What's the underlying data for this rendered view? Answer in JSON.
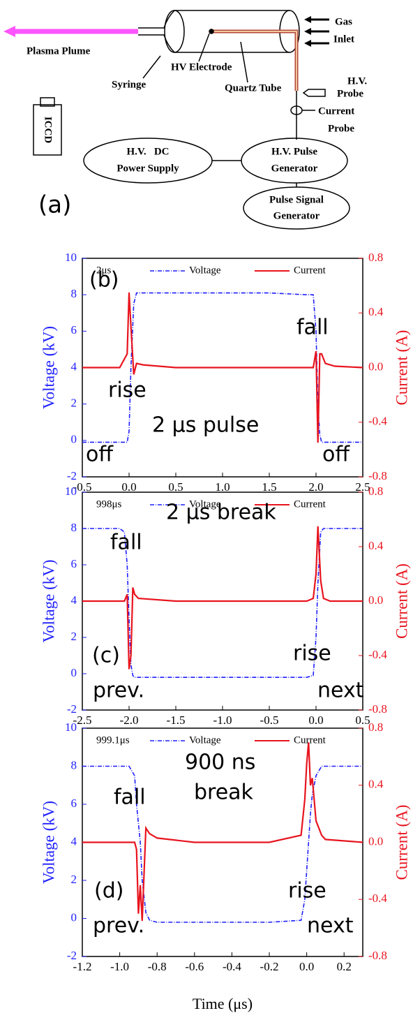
{
  "diagram": {
    "panel_label": "(a)",
    "plasma_plume": "Plasma Plume",
    "syringe": "Syringe",
    "hv_electrode": "HV Electrode",
    "quartz_tube": "Quartz Tube",
    "gas_inlet": [
      "Gas",
      "Inlet"
    ],
    "hv_probe": [
      "H.V.",
      "Probe"
    ],
    "current_probe": [
      "Current",
      "Probe"
    ],
    "iccd": "ICCD",
    "hv_dc_power_supply": [
      "H.V.   DC",
      "Power Supply"
    ],
    "hv_pulse_generator": [
      "H.V. Pulse",
      "Generator"
    ],
    "pulse_signal_generator": [
      "Pulse Signal",
      "Generator"
    ]
  },
  "chart_data": [
    {
      "type": "line",
      "panel_label": "(b)",
      "legend_title": "2μs",
      "y_label": "Voltage (kV)",
      "y2_label": "Current (A)",
      "annotations": [
        "rise",
        "fall",
        "2 μs pulse",
        "off",
        "off"
      ],
      "x": [
        -0.5,
        -0.1,
        -0.02,
        0,
        0.02,
        0.05,
        0.08,
        0.15,
        0.5,
        1.0,
        1.5,
        1.9,
        1.97,
        2.0,
        2.02,
        2.04,
        2.06,
        2.1,
        2.2,
        2.5
      ],
      "series": [
        {
          "name": "Voltage",
          "color": "#1f1fff",
          "values": [
            -0.1,
            -0.1,
            -0.1,
            0.5,
            4,
            7.5,
            8.1,
            8.1,
            8.1,
            8.1,
            8.1,
            8.0,
            8.0,
            6,
            2,
            0.3,
            -0.1,
            -0.1,
            -0.1,
            -0.1
          ]
        },
        {
          "name": "Current",
          "color": "#e8141e",
          "axis": "y2",
          "values": [
            0,
            0,
            0.1,
            0.55,
            0.3,
            -0.05,
            0.03,
            0.02,
            0,
            0,
            0,
            0,
            0,
            0.12,
            -0.55,
            0.1,
            0.1,
            0.03,
            0.01,
            0
          ]
        }
      ],
      "xlim": [
        -0.5,
        2.5
      ],
      "xticks": [
        -0.5,
        {
          "value": 0,
          "label": "0.0"
        },
        0.5,
        {
          "value": 1,
          "label": "1.0"
        },
        1.5,
        {
          "value": 2,
          "label": "2.0"
        },
        2.5
      ],
      "ylim": [
        -2,
        10
      ],
      "yticks": [
        -2,
        0,
        2,
        4,
        6,
        8,
        10
      ],
      "y2lim": [
        -0.8,
        0.8
      ],
      "y2ticks": [
        -0.8,
        -0.4,
        {
          "value": 0,
          "label": "0.0"
        },
        0.4,
        0.8
      ]
    },
    {
      "type": "line",
      "panel_label": "(c)",
      "legend_title": "998μs",
      "y_label": "Voltage (kV)",
      "y2_label": "Current (A)",
      "annotations": [
        "fall",
        "2 μs break",
        "rise",
        "prev.",
        "next"
      ],
      "x": [
        -2.5,
        -2.1,
        -2.05,
        -2.02,
        -2.0,
        -1.98,
        -1.96,
        -1.94,
        -1.9,
        -1.5,
        -1.0,
        -0.5,
        -0.1,
        -0.03,
        0,
        0.02,
        0.05,
        0.08,
        0.15,
        0.5
      ],
      "series": [
        {
          "name": "Voltage",
          "color": "#1f1fff",
          "values": [
            8,
            8,
            7.8,
            6,
            3,
            0.5,
            -0.1,
            -0.2,
            -0.2,
            -0.2,
            -0.2,
            -0.2,
            -0.2,
            -0.1,
            2,
            5,
            7.8,
            8,
            8,
            8
          ]
        },
        {
          "name": "Current",
          "color": "#e8141e",
          "axis": "y2",
          "values": [
            0,
            0,
            0,
            0.05,
            -0.5,
            -0.4,
            0.1,
            0.05,
            0.02,
            0,
            0,
            0,
            0,
            0.02,
            0.2,
            0.55,
            0.15,
            0.02,
            0,
            0
          ]
        }
      ],
      "xlim": [
        -2.5,
        0.5
      ],
      "xticks": [
        -2.5,
        {
          "value": -2,
          "label": "-2.0"
        },
        -1.5,
        {
          "value": -1,
          "label": "-1.0"
        },
        -0.5,
        {
          "value": 0,
          "label": "0.0"
        },
        0.5
      ],
      "ylim": [
        -2,
        10
      ],
      "yticks": [
        -2,
        0,
        2,
        4,
        6,
        8,
        10
      ],
      "y2lim": [
        -0.8,
        0.8
      ],
      "y2ticks": [
        -0.8,
        -0.4,
        {
          "value": 0,
          "label": "0.0"
        },
        0.4,
        0.8
      ]
    },
    {
      "type": "line",
      "panel_label": "(d)",
      "legend_title": "999.1μs",
      "y_label": "Voltage (kV)",
      "y2_label": "Current (A)",
      "x_label": "Time (μs)",
      "annotations": [
        "fall",
        "900 ns",
        "break",
        "rise",
        "prev.",
        "next"
      ],
      "x": [
        -1.2,
        -0.95,
        -0.92,
        -0.91,
        -0.9,
        -0.89,
        -0.88,
        -0.86,
        -0.84,
        -0.8,
        -0.6,
        -0.4,
        -0.2,
        -0.03,
        -0.01,
        0,
        0.01,
        0.02,
        0.03,
        0.05,
        0.08,
        0.1,
        0.3
      ],
      "series": [
        {
          "name": "Voltage",
          "color": "#1f1fff",
          "values": [
            8,
            8,
            7.5,
            6,
            5,
            4,
            2,
            0.3,
            -0.1,
            -0.2,
            -0.2,
            -0.2,
            -0.2,
            -0.1,
            1,
            2.5,
            4,
            5.5,
            6.5,
            7.5,
            8,
            8,
            8
          ]
        },
        {
          "name": "Current",
          "color": "#e8141e",
          "axis": "y2",
          "values": [
            0,
            0,
            0,
            -0.05,
            -0.5,
            -0.3,
            -0.55,
            0.1,
            0.06,
            0.03,
            0,
            0,
            0,
            0.05,
            0.3,
            0.55,
            0.7,
            0.4,
            0.45,
            0.15,
            0.05,
            0.02,
            0
          ]
        }
      ],
      "xlim": [
        -1.2,
        0.3
      ],
      "xticks": [
        -1.2,
        {
          "value": -1,
          "label": "-1.0"
        },
        -0.8,
        -0.6,
        -0.4,
        -0.2,
        {
          "value": 0,
          "label": "0.0"
        },
        0.2
      ],
      "ylim": [
        -2,
        10
      ],
      "yticks": [
        -2,
        0,
        2,
        4,
        6,
        8,
        10
      ],
      "y2lim": [
        -0.8,
        0.8
      ],
      "y2ticks": [
        -0.8,
        -0.4,
        {
          "value": 0,
          "label": "0.0"
        },
        0.4,
        0.8
      ]
    }
  ]
}
